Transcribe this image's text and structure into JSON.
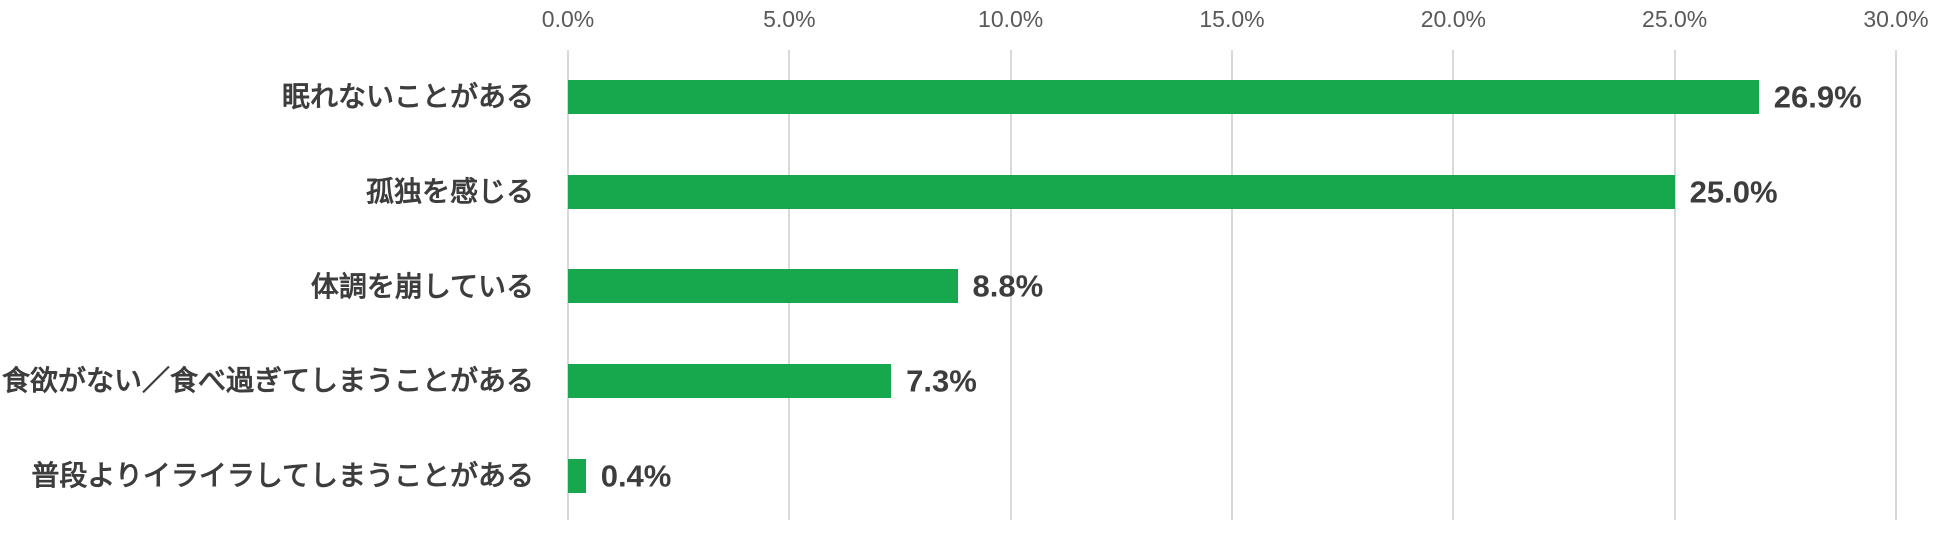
{
  "chart_data": {
    "type": "bar",
    "orientation": "horizontal",
    "title": "",
    "xlabel": "",
    "ylabel": "",
    "categories": [
      "眠れないことがある",
      "孤独を感じる",
      "体調を崩している",
      "食欲がない／食べ過ぎてしまうことがある",
      "普段よりイライラしてしまうことがある"
    ],
    "values": [
      26.9,
      25.0,
      8.8,
      7.3,
      0.4
    ],
    "value_labels": [
      "26.9%",
      "25.0%",
      "8.8%",
      "7.3%",
      "0.4%"
    ],
    "xlim": [
      0,
      30
    ],
    "x_tick_values": [
      0,
      5,
      10,
      15,
      20,
      25,
      30
    ],
    "x_ticks": [
      "0.0%",
      "5.0%",
      "10.0%",
      "15.0%",
      "20.0%",
      "25.0%",
      "30.0%"
    ],
    "axis_position": "top",
    "grid": true,
    "legend": false,
    "colors": {
      "bar": "#17a74c",
      "gridline": "#d9d9d9",
      "tick_label": "#595959",
      "category_label": "#3d3d3d",
      "value_label": "#3d3d3d",
      "background": "#ffffff"
    }
  }
}
